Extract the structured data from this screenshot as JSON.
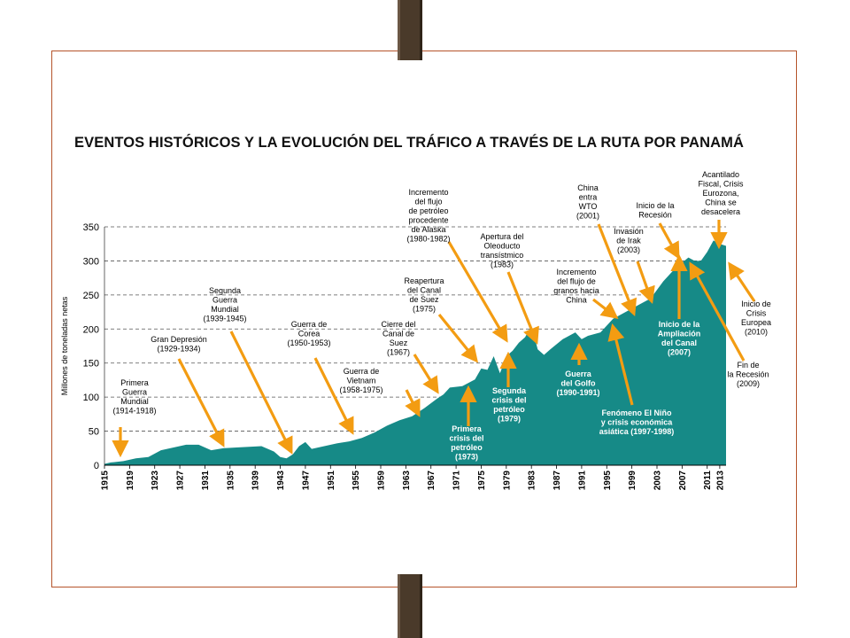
{
  "slide": {
    "accent": "#b5542a",
    "clip_color": "#4a3a2a"
  },
  "chart_data": {
    "type": "area",
    "title": "EVENTOS HISTÓRICOS Y LA EVOLUCIÓN DEL TRÁFICO A TRAVÉS DE LA RUTA POR PANAMÁ",
    "xlabel": "",
    "ylabel": "Millones de toneladas netas",
    "xlim": [
      1915,
      2014
    ],
    "ylim": [
      0,
      350
    ],
    "yticks": [
      0,
      50,
      100,
      150,
      200,
      250,
      300,
      350
    ],
    "xticks": [
      1915,
      1919,
      1923,
      1927,
      1931,
      1935,
      1939,
      1943,
      1947,
      1951,
      1955,
      1959,
      1963,
      1967,
      1971,
      1975,
      1979,
      1983,
      1987,
      1991,
      1995,
      1999,
      2003,
      2007,
      2011,
      2013
    ],
    "grid": "horizontal-dashed",
    "fill_color": "#168a87",
    "series": [
      {
        "x": [
          1915,
          1916,
          1918,
          1920,
          1922,
          1924,
          1926,
          1928,
          1930,
          1932,
          1934,
          1936,
          1938,
          1940,
          1942,
          1943,
          1944,
          1945,
          1946,
          1947,
          1948,
          1950,
          1952,
          1954,
          1956,
          1958,
          1960,
          1962,
          1964,
          1966,
          1968,
          1969,
          1970,
          1972,
          1974,
          1975,
          1976,
          1977,
          1978,
          1979,
          1980,
          1981,
          1982,
          1983,
          1984,
          1985,
          1986,
          1988,
          1990,
          1991,
          1992,
          1994,
          1996,
          1998,
          2000,
          2002,
          2004,
          2006,
          2008,
          2009,
          2010,
          2011,
          2012,
          2013,
          2014
        ],
        "y": [
          2,
          4,
          6,
          10,
          12,
          22,
          26,
          30,
          30,
          22,
          25,
          26,
          27,
          28,
          20,
          12,
          10,
          16,
          28,
          34,
          24,
          28,
          32,
          35,
          40,
          48,
          58,
          66,
          72,
          84,
          98,
          104,
          114,
          116,
          126,
          142,
          140,
          160,
          135,
          160,
          168,
          180,
          188,
          205,
          170,
          162,
          170,
          185,
          195,
          185,
          190,
          195,
          215,
          225,
          235,
          245,
          270,
          290,
          305,
          300,
          300,
          313,
          330,
          325,
          322
        ]
      }
    ],
    "annotations": [
      {
        "lines": [
          "Primera",
          "Guerra",
          "Mundial",
          "(1914-1918)"
        ]
      },
      {
        "lines": [
          "Gran Depresión",
          "(1929-1934)"
        ]
      },
      {
        "lines": [
          "Segunda",
          "Guerra",
          "Mundial",
          "(1939-1945)"
        ]
      },
      {
        "lines": [
          "Guerra de",
          "Corea",
          "(1950-1953)"
        ]
      },
      {
        "lines": [
          "Guerra de",
          "Vietnam",
          "(1958-1975)"
        ]
      },
      {
        "lines": [
          "Cierre del",
          "Canal de",
          "Suez",
          "(1967)"
        ]
      },
      {
        "lines": [
          "Reapertura",
          "del Canal",
          "de Suez",
          "(1975)"
        ]
      },
      {
        "lines": [
          "Incremento",
          "del flujo",
          "de petróleo",
          "procedente",
          "de Alaska",
          "(1980-1982)"
        ]
      },
      {
        "lines": [
          "Apertura del",
          "Oleoducto",
          "transístmico",
          "(1983)"
        ]
      },
      {
        "lines": [
          "Primera",
          "crisis del",
          "petróleo",
          "(1973)"
        ]
      },
      {
        "lines": [
          "Segunda",
          "crisis del",
          "petróleo",
          "(1979)"
        ]
      },
      {
        "lines": [
          "Incremento",
          "del flujo de",
          "granos hacia",
          "China"
        ]
      },
      {
        "lines": [
          "Guerra",
          "del Golfo",
          "(1990-1991)"
        ]
      },
      {
        "lines": [
          "China",
          "entra",
          "WTO",
          "(2001)"
        ]
      },
      {
        "lines": [
          "Invasión",
          "de Irak",
          "(2003)"
        ]
      },
      {
        "lines": [
          "Inicio de la",
          "Recesión"
        ]
      },
      {
        "lines": [
          "Acantilado",
          "Fiscal, Crisis",
          "Eurozona,",
          "China se",
          "desacelera"
        ]
      },
      {
        "lines": [
          "Inicio de la",
          "Ampliación",
          "del Canal",
          "(2007)"
        ]
      },
      {
        "lines": [
          "Fenómeno El Niño",
          "y crisis económica",
          "asiática (1997-1998)"
        ]
      },
      {
        "lines": [
          "Inicio de",
          "Crisis",
          "Europea",
          "(2010)"
        ]
      },
      {
        "lines": [
          "Fin de",
          "la Recesión",
          "(2009)"
        ]
      }
    ]
  }
}
